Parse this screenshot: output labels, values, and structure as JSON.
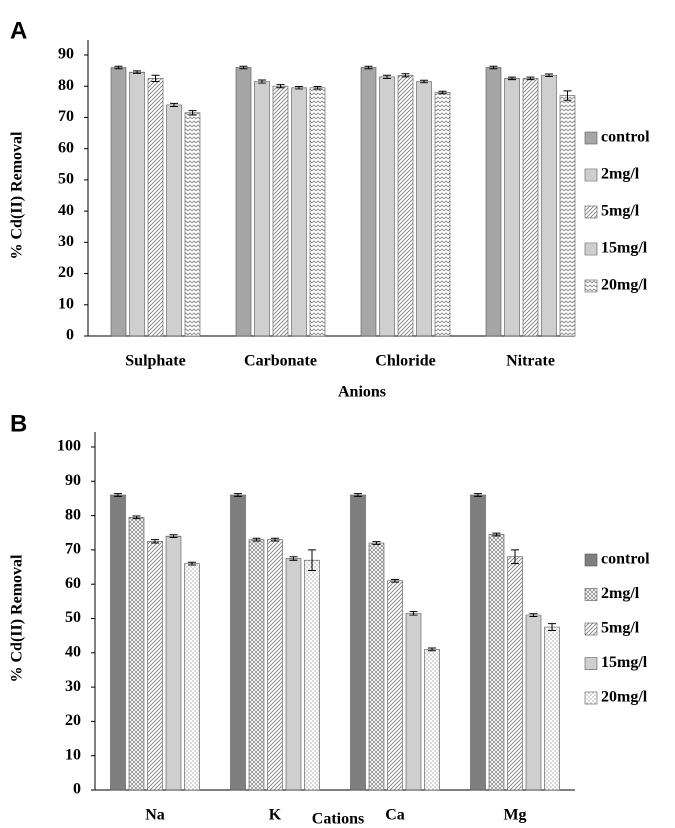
{
  "chart_data": [
    {
      "type": "bar",
      "panel": "A",
      "ylabel": "% Cd(II)  Removal",
      "xlabel": "Anions",
      "categories": [
        "Sulphate",
        "Carbonate",
        "Chloride",
        "Nitrate"
      ],
      "ylim": [
        0,
        90
      ],
      "yticks": [
        0,
        10,
        20,
        30,
        40,
        50,
        60,
        70,
        80,
        90
      ],
      "series": [
        {
          "name": "control",
          "color": "#a6a6a6",
          "pattern": "solid",
          "values": [
            86,
            86,
            86,
            86
          ],
          "errors": [
            0.4,
            0.4,
            0.4,
            0.4
          ]
        },
        {
          "name": "2mg/l",
          "color": "#808080",
          "pattern": "hlines",
          "values": [
            84.5,
            81.5,
            83,
            82.5
          ],
          "errors": [
            0.4,
            0.5,
            0.5,
            0.4
          ]
        },
        {
          "name": "5mg/l",
          "color": "#808080",
          "pattern": "diag",
          "values": [
            82.5,
            80,
            83.5,
            82.5
          ],
          "errors": [
            1,
            0.5,
            0.5,
            0.4
          ]
        },
        {
          "name": "15mg/l",
          "color": "#808080",
          "pattern": "hlines",
          "values": [
            74,
            79.5,
            81.5,
            83.5
          ],
          "errors": [
            0.5,
            0.4,
            0.4,
            0.4
          ]
        },
        {
          "name": "20mg/l",
          "color": "#808080",
          "pattern": "zigzag",
          "values": [
            71.5,
            79.5,
            78,
            77
          ],
          "errors": [
            0.7,
            0.4,
            0.4,
            1.5
          ]
        }
      ]
    },
    {
      "type": "bar",
      "panel": "B",
      "ylabel": "% Cd(II)  Removal",
      "xlabel": "Cations",
      "categories": [
        "Na",
        "K",
        "Ca",
        "Mg"
      ],
      "ylim": [
        0,
        100
      ],
      "yticks": [
        0,
        10,
        20,
        30,
        40,
        50,
        60,
        70,
        80,
        90,
        100
      ],
      "series": [
        {
          "name": "control",
          "color": "#7f7f7f",
          "pattern": "solid",
          "values": [
            86,
            86,
            86,
            86
          ],
          "errors": [
            0.4,
            0.4,
            0.4,
            0.4
          ]
        },
        {
          "name": "2mg/l",
          "color": "#808080",
          "pattern": "cross",
          "values": [
            79.5,
            73,
            72,
            74.5
          ],
          "errors": [
            0.4,
            0.4,
            0.4,
            0.4
          ]
        },
        {
          "name": "5mg/l",
          "color": "#808080",
          "pattern": "diag",
          "values": [
            72.5,
            73,
            61,
            68
          ],
          "errors": [
            0.5,
            0.4,
            0.4,
            2
          ]
        },
        {
          "name": "15mg/l",
          "color": "#808080",
          "pattern": "hlines",
          "values": [
            74,
            67.5,
            51.5,
            51
          ],
          "errors": [
            0.4,
            0.5,
            0.5,
            0.4
          ]
        },
        {
          "name": "20mg/l",
          "color": "#808080",
          "pattern": "dots",
          "values": [
            66,
            67,
            41,
            47.5
          ],
          "errors": [
            0.4,
            3,
            0.4,
            1
          ]
        }
      ]
    }
  ]
}
